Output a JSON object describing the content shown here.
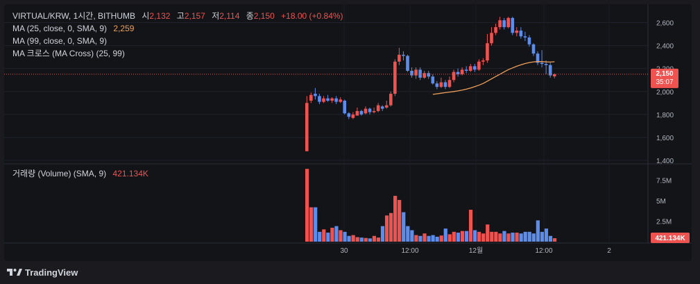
{
  "header": {
    "symbol": "VIRTUAL/KRW, 1시간, BITHUMB",
    "open_label": "시",
    "open_value": "2,132",
    "high_label": "고",
    "high_value": "2,157",
    "low_label": "저",
    "low_value": "2,114",
    "close_label": "종",
    "close_value": "2,150",
    "change": "+18.00 (+0.84%)"
  },
  "indicators": {
    "ma25": {
      "label": "MA (25, close, 0, SMA, 9)",
      "value": "2,259"
    },
    "ma99": {
      "label": "MA (99, close, 0, SMA, 9)"
    },
    "macross": {
      "label": "MA 크로스 (MA Cross) (25, 99)"
    }
  },
  "volume_pane": {
    "label": "거래량 (Volume) (SMA, 9)",
    "value": "421.134K",
    "badge": "421.134K"
  },
  "price_badge": {
    "price": "2,150",
    "countdown": "35:07"
  },
  "footer": {
    "brand": "TradingView"
  },
  "colors": {
    "up": "#ef5350",
    "down": "#5b8def",
    "ma25": "#f0a05a",
    "background": "#131418",
    "text": "#d1d4dc",
    "axis_text": "#b2b5be"
  },
  "chart_data": [
    {
      "type": "candlestick",
      "title": "VIRTUAL/KRW, 1시간, BITHUMB",
      "y_axis": {
        "ticks": [
          1400,
          1600,
          1800,
          2000,
          2200,
          2400,
          2600
        ],
        "tick_labels": [
          "1,400",
          "1,600",
          "1,800",
          "2,000",
          "2,200",
          "2,400",
          "2,600"
        ],
        "ylim": [
          1370,
          2760
        ]
      },
      "x_axis": {
        "tick_labels": [
          "30",
          "12:00",
          "12월",
          "12:00",
          "2"
        ]
      },
      "last_price": 2150,
      "candles": [
        [
          1480,
          1900,
          1960,
          1480
        ],
        [
          1920,
          1970,
          1990,
          1900
        ],
        [
          1980,
          1960,
          2030,
          1930
        ],
        [
          1960,
          1910,
          1980,
          1890
        ],
        [
          1910,
          1940,
          1960,
          1900
        ],
        [
          1940,
          1920,
          1970,
          1910
        ],
        [
          1920,
          1940,
          1950,
          1900
        ],
        [
          1940,
          1910,
          1960,
          1890
        ],
        [
          1910,
          1930,
          1950,
          1900
        ],
        [
          1920,
          1810,
          1930,
          1800
        ],
        [
          1810,
          1780,
          1820,
          1760
        ],
        [
          1770,
          1800,
          1820,
          1760
        ],
        [
          1790,
          1830,
          1860,
          1790
        ],
        [
          1830,
          1800,
          1840,
          1790
        ],
        [
          1810,
          1850,
          1870,
          1800
        ],
        [
          1850,
          1820,
          1860,
          1800
        ],
        [
          1820,
          1830,
          1860,
          1810
        ],
        [
          1830,
          1880,
          1900,
          1820
        ],
        [
          1870,
          1850,
          1880,
          1830
        ],
        [
          1860,
          1880,
          1920,
          1850
        ],
        [
          1880,
          1980,
          2000,
          1870
        ],
        [
          1980,
          2260,
          2280,
          1960
        ],
        [
          2260,
          2320,
          2380,
          2230
        ],
        [
          2320,
          2310,
          2350,
          2270
        ],
        [
          2310,
          2180,
          2320,
          2170
        ],
        [
          2180,
          2140,
          2210,
          2120
        ],
        [
          2140,
          2190,
          2210,
          2110
        ],
        [
          2190,
          2120,
          2210,
          2100
        ],
        [
          2120,
          2160,
          2180,
          2110
        ],
        [
          2160,
          2130,
          2180,
          2110
        ],
        [
          2130,
          2070,
          2150,
          2060
        ],
        [
          2070,
          2040,
          2090,
          2020
        ],
        [
          2040,
          2080,
          2120,
          2030
        ],
        [
          2080,
          2040,
          2100,
          2020
        ],
        [
          2040,
          2100,
          2130,
          2030
        ],
        [
          2100,
          2170,
          2190,
          2080
        ],
        [
          2170,
          2150,
          2200,
          2130
        ],
        [
          2150,
          2190,
          2210,
          2140
        ],
        [
          2190,
          2180,
          2220,
          2160
        ],
        [
          2180,
          2220,
          2240,
          2170
        ],
        [
          2220,
          2190,
          2240,
          2170
        ],
        [
          2190,
          2260,
          2280,
          2180
        ],
        [
          2260,
          2270,
          2290,
          2230
        ],
        [
          2270,
          2420,
          2500,
          2250
        ],
        [
          2420,
          2510,
          2560,
          2400
        ],
        [
          2510,
          2560,
          2590,
          2490
        ],
        [
          2560,
          2620,
          2650,
          2540
        ],
        [
          2620,
          2560,
          2640,
          2540
        ],
        [
          2560,
          2640,
          2650,
          2550
        ],
        [
          2640,
          2510,
          2650,
          2490
        ],
        [
          2510,
          2530,
          2560,
          2480
        ],
        [
          2530,
          2480,
          2560,
          2460
        ],
        [
          2480,
          2470,
          2520,
          2440
        ],
        [
          2470,
          2410,
          2490,
          2390
        ],
        [
          2410,
          2330,
          2420,
          2310
        ],
        [
          2330,
          2250,
          2350,
          2230
        ],
        [
          2250,
          2240,
          2360,
          2210
        ],
        [
          2240,
          2230,
          2270,
          2150
        ],
        [
          2230,
          2140,
          2250,
          2120
        ],
        [
          2132,
          2150,
          2157,
          2114
        ]
      ],
      "ma25": [
        null,
        null,
        null,
        null,
        null,
        null,
        null,
        null,
        null,
        null,
        null,
        null,
        null,
        null,
        null,
        null,
        null,
        null,
        null,
        null,
        null,
        null,
        null,
        null,
        null,
        null,
        null,
        null,
        null,
        null,
        1975,
        1980,
        1985,
        1990,
        1995,
        2000,
        2005,
        2012,
        2020,
        2030,
        2042,
        2055,
        2070,
        2090,
        2110,
        2130,
        2150,
        2170,
        2190,
        2205,
        2220,
        2232,
        2243,
        2252,
        2258,
        2260,
        2260,
        2258,
        2256,
        2259
      ]
    },
    {
      "type": "bar",
      "title": "거래량 (Volume) (SMA, 9)",
      "y_axis": {
        "ticks": [
          2500000,
          5000000,
          7500000
        ],
        "tick_labels": [
          "2.5M",
          "5M",
          "7.5M"
        ],
        "ylim": [
          0,
          9000000
        ]
      },
      "values": [
        8900000,
        4200000,
        4200000,
        1200000,
        1500000,
        1100000,
        1700000,
        1900000,
        1400000,
        1200000,
        700000,
        800000,
        550000,
        500000,
        450000,
        400000,
        700000,
        500000,
        1900000,
        3200000,
        3500000,
        5600000,
        5100000,
        3600000,
        1900000,
        1400000,
        800000,
        700000,
        1000000,
        700000,
        800000,
        600000,
        750000,
        1600000,
        900000,
        1200000,
        1100000,
        1300000,
        1300000,
        3900000,
        1400000,
        1200000,
        1000000,
        2100000,
        1200000,
        1200000,
        1000000,
        1300000,
        1000000,
        1100000,
        1100000,
        1000000,
        1200000,
        1200000,
        1000000,
        2600000,
        1200000,
        1600000,
        700000,
        421134
      ]
    }
  ]
}
